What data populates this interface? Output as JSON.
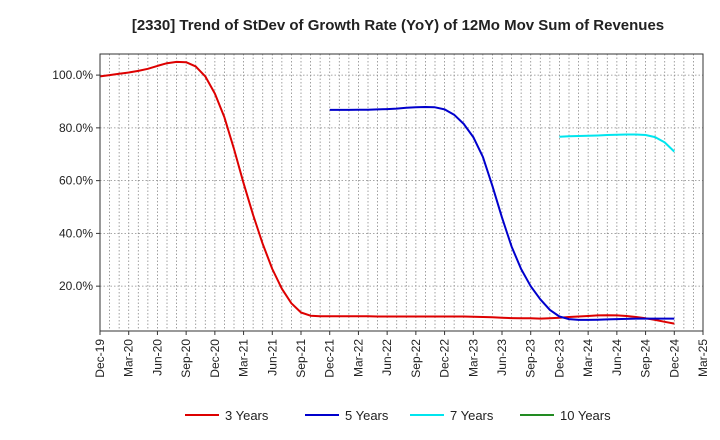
{
  "chart_data": {
    "type": "line",
    "title": "[2330]  Trend of StDev of Growth Rate (YoY) of 12Mo Mov Sum of Revenues",
    "xlabel": "",
    "ylabel": "",
    "ylim": [
      3,
      108
    ],
    "x_tick_labels": [
      "Dec-19",
      "Mar-20",
      "Jun-20",
      "Sep-20",
      "Dec-20",
      "Mar-21",
      "Jun-21",
      "Sep-21",
      "Dec-21",
      "Mar-22",
      "Jun-22",
      "Sep-22",
      "Dec-22",
      "Mar-23",
      "Jun-23",
      "Sep-23",
      "Dec-23",
      "Mar-24",
      "Jun-24",
      "Sep-24",
      "Dec-24",
      "Mar-25"
    ],
    "y_ticks": [
      20,
      40,
      60,
      80,
      100
    ],
    "y_tick_labels": [
      "20.0%",
      "40.0%",
      "60.0%",
      "80.0%",
      "100.0%"
    ],
    "grid": true,
    "legend_position": "bottom",
    "series": [
      {
        "name": "3 Years",
        "color": "#dd0000",
        "x": [
          0,
          1,
          2,
          3,
          4,
          5,
          6,
          7,
          8,
          9,
          10,
          11,
          12,
          13,
          14,
          15,
          16,
          17,
          18,
          19,
          20,
          21,
          22,
          23,
          24,
          25,
          26,
          27,
          28,
          29,
          30,
          31,
          32,
          33,
          34,
          35,
          36,
          37,
          38,
          39,
          40,
          41,
          42,
          43,
          44,
          45,
          46,
          47,
          48,
          49,
          50,
          51,
          52,
          53,
          54,
          55,
          56,
          57,
          58,
          59,
          60
        ],
        "values": [
          99.5,
          100.0,
          100.5,
          101.0,
          101.6,
          102.4,
          103.5,
          104.5,
          105.0,
          104.9,
          103.3,
          99.5,
          93.0,
          84.0,
          72.0,
          59.0,
          47.0,
          36.0,
          26.5,
          19.0,
          13.5,
          10.0,
          8.8,
          8.6,
          8.6,
          8.6,
          8.6,
          8.6,
          8.6,
          8.5,
          8.5,
          8.5,
          8.5,
          8.5,
          8.5,
          8.5,
          8.5,
          8.5,
          8.5,
          8.4,
          8.3,
          8.2,
          8.0,
          7.9,
          7.8,
          7.8,
          7.7,
          7.8,
          8.0,
          8.3,
          8.5,
          8.7,
          8.9,
          9.0,
          8.9,
          8.7,
          8.3,
          7.8,
          7.2,
          6.5,
          5.8
        ]
      },
      {
        "name": "5 Years",
        "color": "#0000cc",
        "x": [
          24,
          25,
          26,
          27,
          28,
          29,
          30,
          31,
          32,
          33,
          34,
          35,
          36,
          37,
          38,
          39,
          40,
          41,
          42,
          43,
          44,
          45,
          46,
          47,
          48,
          49,
          50,
          51,
          52,
          53,
          54,
          55,
          56,
          57,
          58,
          59,
          60
        ],
        "values": [
          86.8,
          86.8,
          86.8,
          86.9,
          86.9,
          87.0,
          87.1,
          87.3,
          87.6,
          87.8,
          87.9,
          87.8,
          87.0,
          85.0,
          81.5,
          76.5,
          69.0,
          58.0,
          46.0,
          35.0,
          26.5,
          20.0,
          15.0,
          11.0,
          8.5,
          7.5,
          7.2,
          7.2,
          7.3,
          7.4,
          7.5,
          7.6,
          7.7,
          7.7,
          7.7,
          7.7,
          7.7
        ]
      },
      {
        "name": "7 Years",
        "color": "#00e5ee",
        "x": [
          48,
          49,
          50,
          51,
          52,
          53,
          54,
          55,
          56,
          57,
          58,
          59,
          60
        ],
        "values": [
          76.6,
          76.8,
          76.9,
          77.0,
          77.1,
          77.3,
          77.4,
          77.5,
          77.5,
          77.3,
          76.5,
          74.5,
          71.0
        ]
      },
      {
        "name": "10 Years",
        "color": "#228b22",
        "x": [],
        "values": []
      }
    ]
  }
}
